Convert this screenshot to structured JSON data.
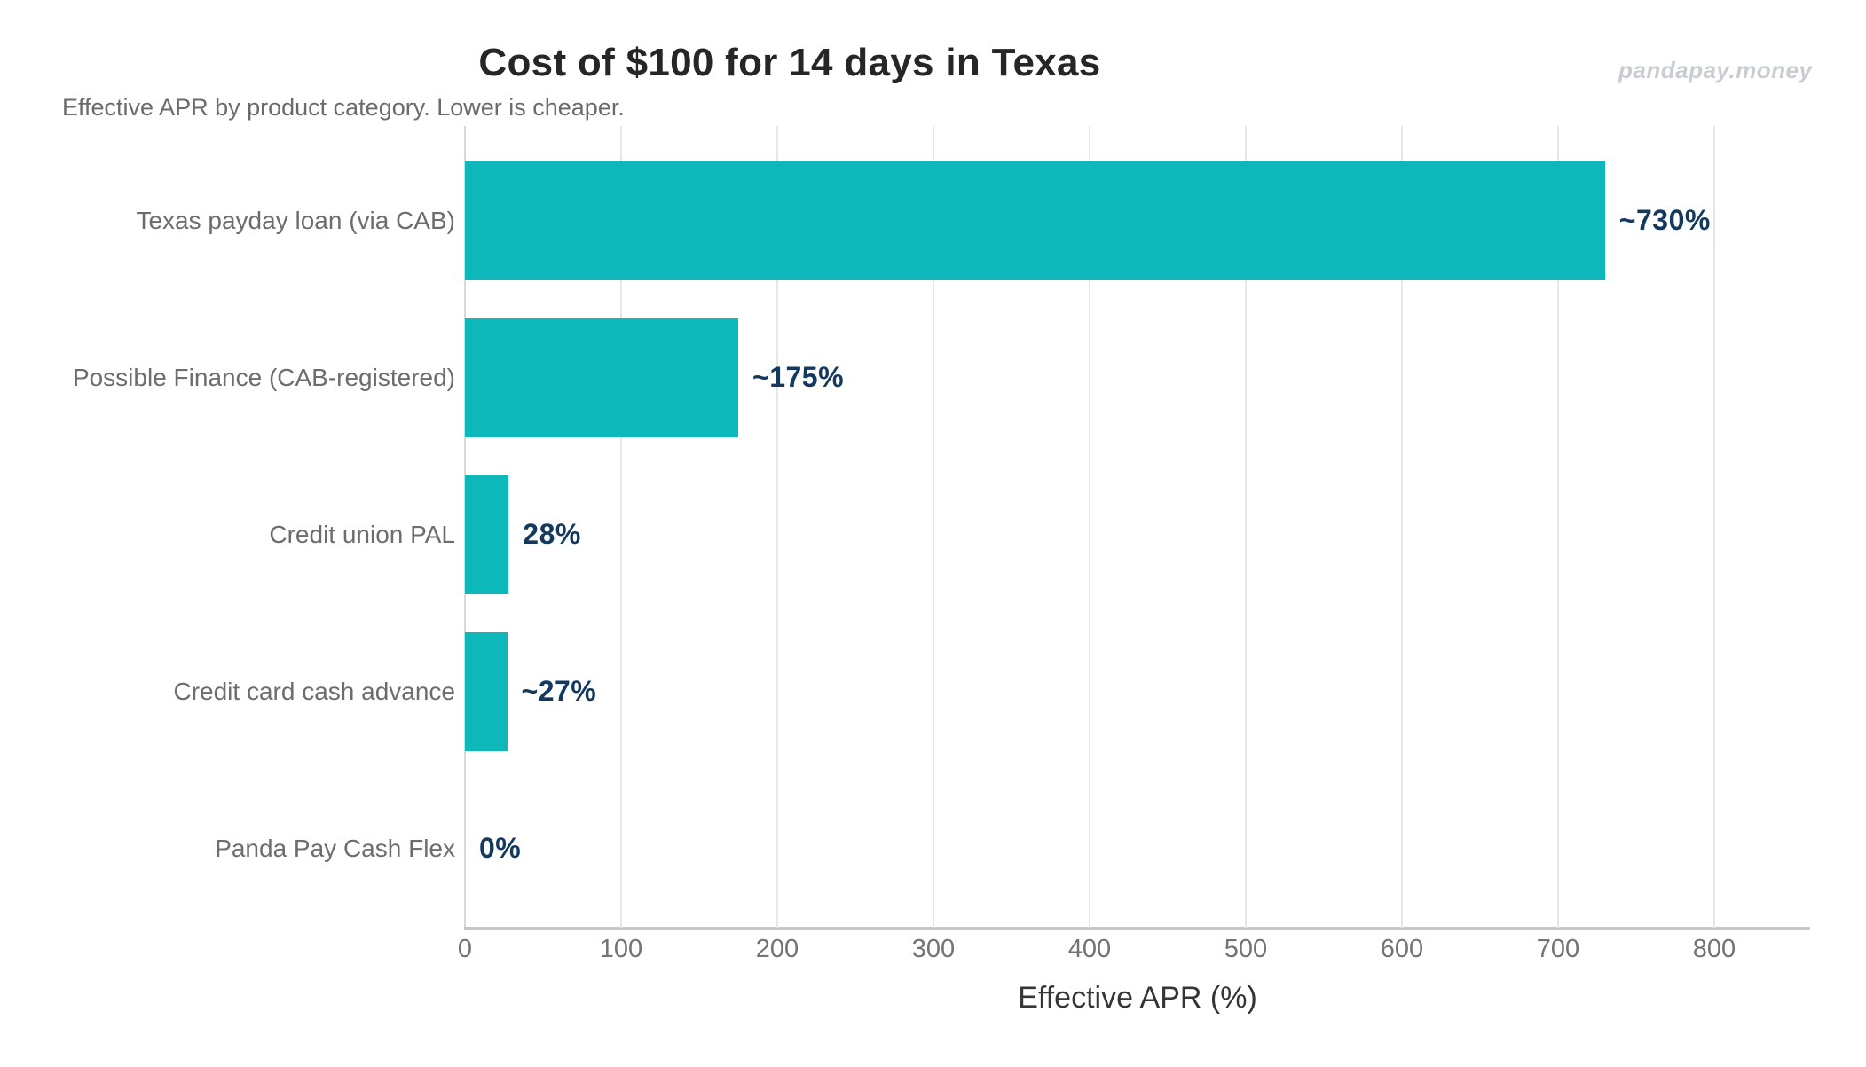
{
  "header": {
    "title": "Cost of $100 for 14 days in Texas",
    "subtitle": "Effective APR by product category. Lower is cheaper.",
    "watermark": "pandapay.money"
  },
  "chart_data": {
    "type": "bar",
    "orientation": "horizontal",
    "title": "Cost of $100 for 14 days in Texas",
    "subtitle": "Effective APR by product category. Lower is cheaper.",
    "categories": [
      "Texas payday loan (via CAB)",
      "Possible Finance (CAB-registered)",
      "Credit union PAL",
      "Credit card cash advance",
      "Panda Pay Cash Flex"
    ],
    "values": [
      730,
      175,
      28,
      27,
      0
    ],
    "value_labels": [
      "~730%",
      "~175%",
      "28%",
      "~27%",
      "0%"
    ],
    "xlabel": "Effective APR (%)",
    "xlim": [
      0,
      861
    ],
    "xticks": [
      0,
      100,
      200,
      300,
      400,
      500,
      600,
      700,
      800
    ],
    "grid": "vertical-at-ticks",
    "legend": "none",
    "colors": {
      "bar": "#0eb8ba",
      "value_label": "#13395e",
      "category_label": "#6b6d6f",
      "gridline": "#e7e7e7",
      "title": "#262626",
      "subtitle": "#696b6d",
      "watermark": "#c9cdd2"
    }
  }
}
